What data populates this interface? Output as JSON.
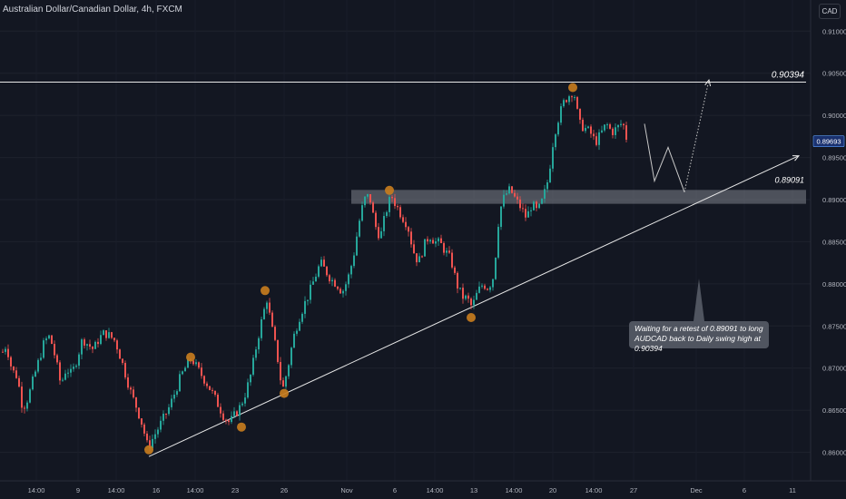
{
  "header": {
    "title": "Australian Dollar/Canadian Dollar, 4h, FXCM",
    "currency": "CAD"
  },
  "annotation": {
    "line1": "Waiting for a retest of 0.89091 to long",
    "line2": "AUDCAD back to Daily swing high at 0.90394"
  },
  "chart_data": {
    "type": "candlestick",
    "symbol": "AUDCAD",
    "timeframe": "4h",
    "last_price": "0.89693",
    "ylim": [
      0.8592,
      0.911
    ],
    "y_ticks": [
      "0.91000",
      "0.90500",
      "0.90000",
      "0.89500",
      "0.89000",
      "0.88500",
      "0.88000",
      "0.87500",
      "0.87000",
      "0.86500",
      "0.86000"
    ],
    "x_ticks": [
      "14:00",
      "9",
      "14:00",
      "16",
      "14:00",
      "23",
      "26",
      "Nov",
      "6",
      "14:00",
      "13",
      "14:00",
      "20",
      "14:00",
      "27",
      "Dec",
      "6",
      "11"
    ],
    "resistance_level": "0.90394",
    "support_level": "0.89091",
    "close_path": [
      [
        0,
        0.8715
      ],
      [
        6,
        0.8728
      ],
      [
        12,
        0.8698
      ],
      [
        18,
        0.869
      ],
      [
        24,
        0.8652
      ],
      [
        30,
        0.8665
      ],
      [
        36,
        0.8688
      ],
      [
        42,
        0.871
      ],
      [
        48,
        0.8732
      ],
      [
        54,
        0.8738
      ],
      [
        60,
        0.8712
      ],
      [
        66,
        0.868
      ],
      [
        72,
        0.87
      ],
      [
        78,
        0.8692
      ],
      [
        84,
        0.8712
      ],
      [
        90,
        0.8735
      ],
      [
        96,
        0.8728
      ],
      [
        102,
        0.8722
      ],
      [
        108,
        0.8735
      ],
      [
        114,
        0.8742
      ],
      [
        120,
        0.8738
      ],
      [
        126,
        0.8732
      ],
      [
        132,
        0.8712
      ],
      [
        138,
        0.869
      ],
      [
        144,
        0.8668
      ],
      [
        150,
        0.8652
      ],
      [
        156,
        0.8632
      ],
      [
        162,
        0.8605
      ],
      [
        168,
        0.8618
      ],
      [
        174,
        0.863
      ],
      [
        180,
        0.8642
      ],
      [
        186,
        0.8655
      ],
      [
        192,
        0.8672
      ],
      [
        198,
        0.869
      ],
      [
        204,
        0.8702
      ],
      [
        210,
        0.8712
      ],
      [
        216,
        0.87
      ],
      [
        222,
        0.869
      ],
      [
        228,
        0.868
      ],
      [
        234,
        0.8668
      ],
      [
        240,
        0.8655
      ],
      [
        246,
        0.8642
      ],
      [
        252,
        0.8635
      ],
      [
        258,
        0.8645
      ],
      [
        264,
        0.8655
      ],
      [
        270,
        0.8672
      ],
      [
        276,
        0.8695
      ],
      [
        282,
        0.873
      ],
      [
        288,
        0.876
      ],
      [
        293,
        0.8782
      ],
      [
        298,
        0.875
      ],
      [
        304,
        0.8718
      ],
      [
        310,
        0.8672
      ],
      [
        316,
        0.87
      ],
      [
        322,
        0.8735
      ],
      [
        328,
        0.8758
      ],
      [
        334,
        0.8775
      ],
      [
        340,
        0.879
      ],
      [
        346,
        0.8808
      ],
      [
        352,
        0.8825
      ],
      [
        358,
        0.8815
      ],
      [
        364,
        0.8805
      ],
      [
        370,
        0.88
      ],
      [
        376,
        0.879
      ],
      [
        382,
        0.8805
      ],
      [
        388,
        0.883
      ],
      [
        394,
        0.887
      ],
      [
        400,
        0.89
      ],
      [
        406,
        0.8905
      ],
      [
        412,
        0.887
      ],
      [
        418,
        0.8855
      ],
      [
        424,
        0.8885
      ],
      [
        430,
        0.8905
      ],
      [
        436,
        0.8892
      ],
      [
        442,
        0.888
      ],
      [
        448,
        0.887
      ],
      [
        454,
        0.884
      ],
      [
        460,
        0.8825
      ],
      [
        466,
        0.8845
      ],
      [
        472,
        0.8858
      ],
      [
        478,
        0.885
      ],
      [
        484,
        0.8848
      ],
      [
        490,
        0.8838
      ],
      [
        496,
        0.8828
      ],
      [
        502,
        0.88
      ],
      [
        508,
        0.8785
      ],
      [
        514,
        0.8782
      ],
      [
        519,
        0.8772
      ],
      [
        525,
        0.879
      ],
      [
        531,
        0.88
      ],
      [
        537,
        0.8795
      ],
      [
        543,
        0.881
      ],
      [
        549,
        0.8885
      ],
      [
        555,
        0.8905
      ],
      [
        561,
        0.8912
      ],
      [
        567,
        0.89
      ],
      [
        573,
        0.889
      ],
      [
        579,
        0.8878
      ],
      [
        585,
        0.8895
      ],
      [
        591,
        0.8885
      ],
      [
        597,
        0.89
      ],
      [
        603,
        0.8925
      ],
      [
        609,
        0.8975
      ],
      [
        615,
        0.9
      ],
      [
        621,
        0.9018
      ],
      [
        627,
        0.9025
      ],
      [
        631,
        0.903
      ],
      [
        637,
        0.899
      ],
      [
        643,
        0.8985
      ],
      [
        649,
        0.898
      ],
      [
        655,
        0.8968
      ],
      [
        661,
        0.8978
      ],
      [
        667,
        0.899
      ],
      [
        673,
        0.898
      ],
      [
        679,
        0.8985
      ],
      [
        685,
        0.8992
      ],
      [
        690,
        0.8969
      ]
    ],
    "swing_points": [
      {
        "x": 164,
        "y": 0.8603
      },
      {
        "x": 210,
        "y": 0.8713
      },
      {
        "x": 266,
        "y": 0.863
      },
      {
        "x": 292,
        "y": 0.8792
      },
      {
        "x": 313,
        "y": 0.867
      },
      {
        "x": 429,
        "y": 0.8911
      },
      {
        "x": 519,
        "y": 0.876
      },
      {
        "x": 631,
        "y": 0.9033
      }
    ],
    "trendline": [
      [
        164,
        0.8595
      ],
      [
        880,
        0.8952
      ]
    ],
    "projection": [
      [
        710,
        0.899
      ],
      [
        721,
        0.8922
      ],
      [
        736,
        0.8962
      ],
      [
        754,
        0.8909
      ],
      [
        781,
        0.9042
      ]
    ]
  }
}
